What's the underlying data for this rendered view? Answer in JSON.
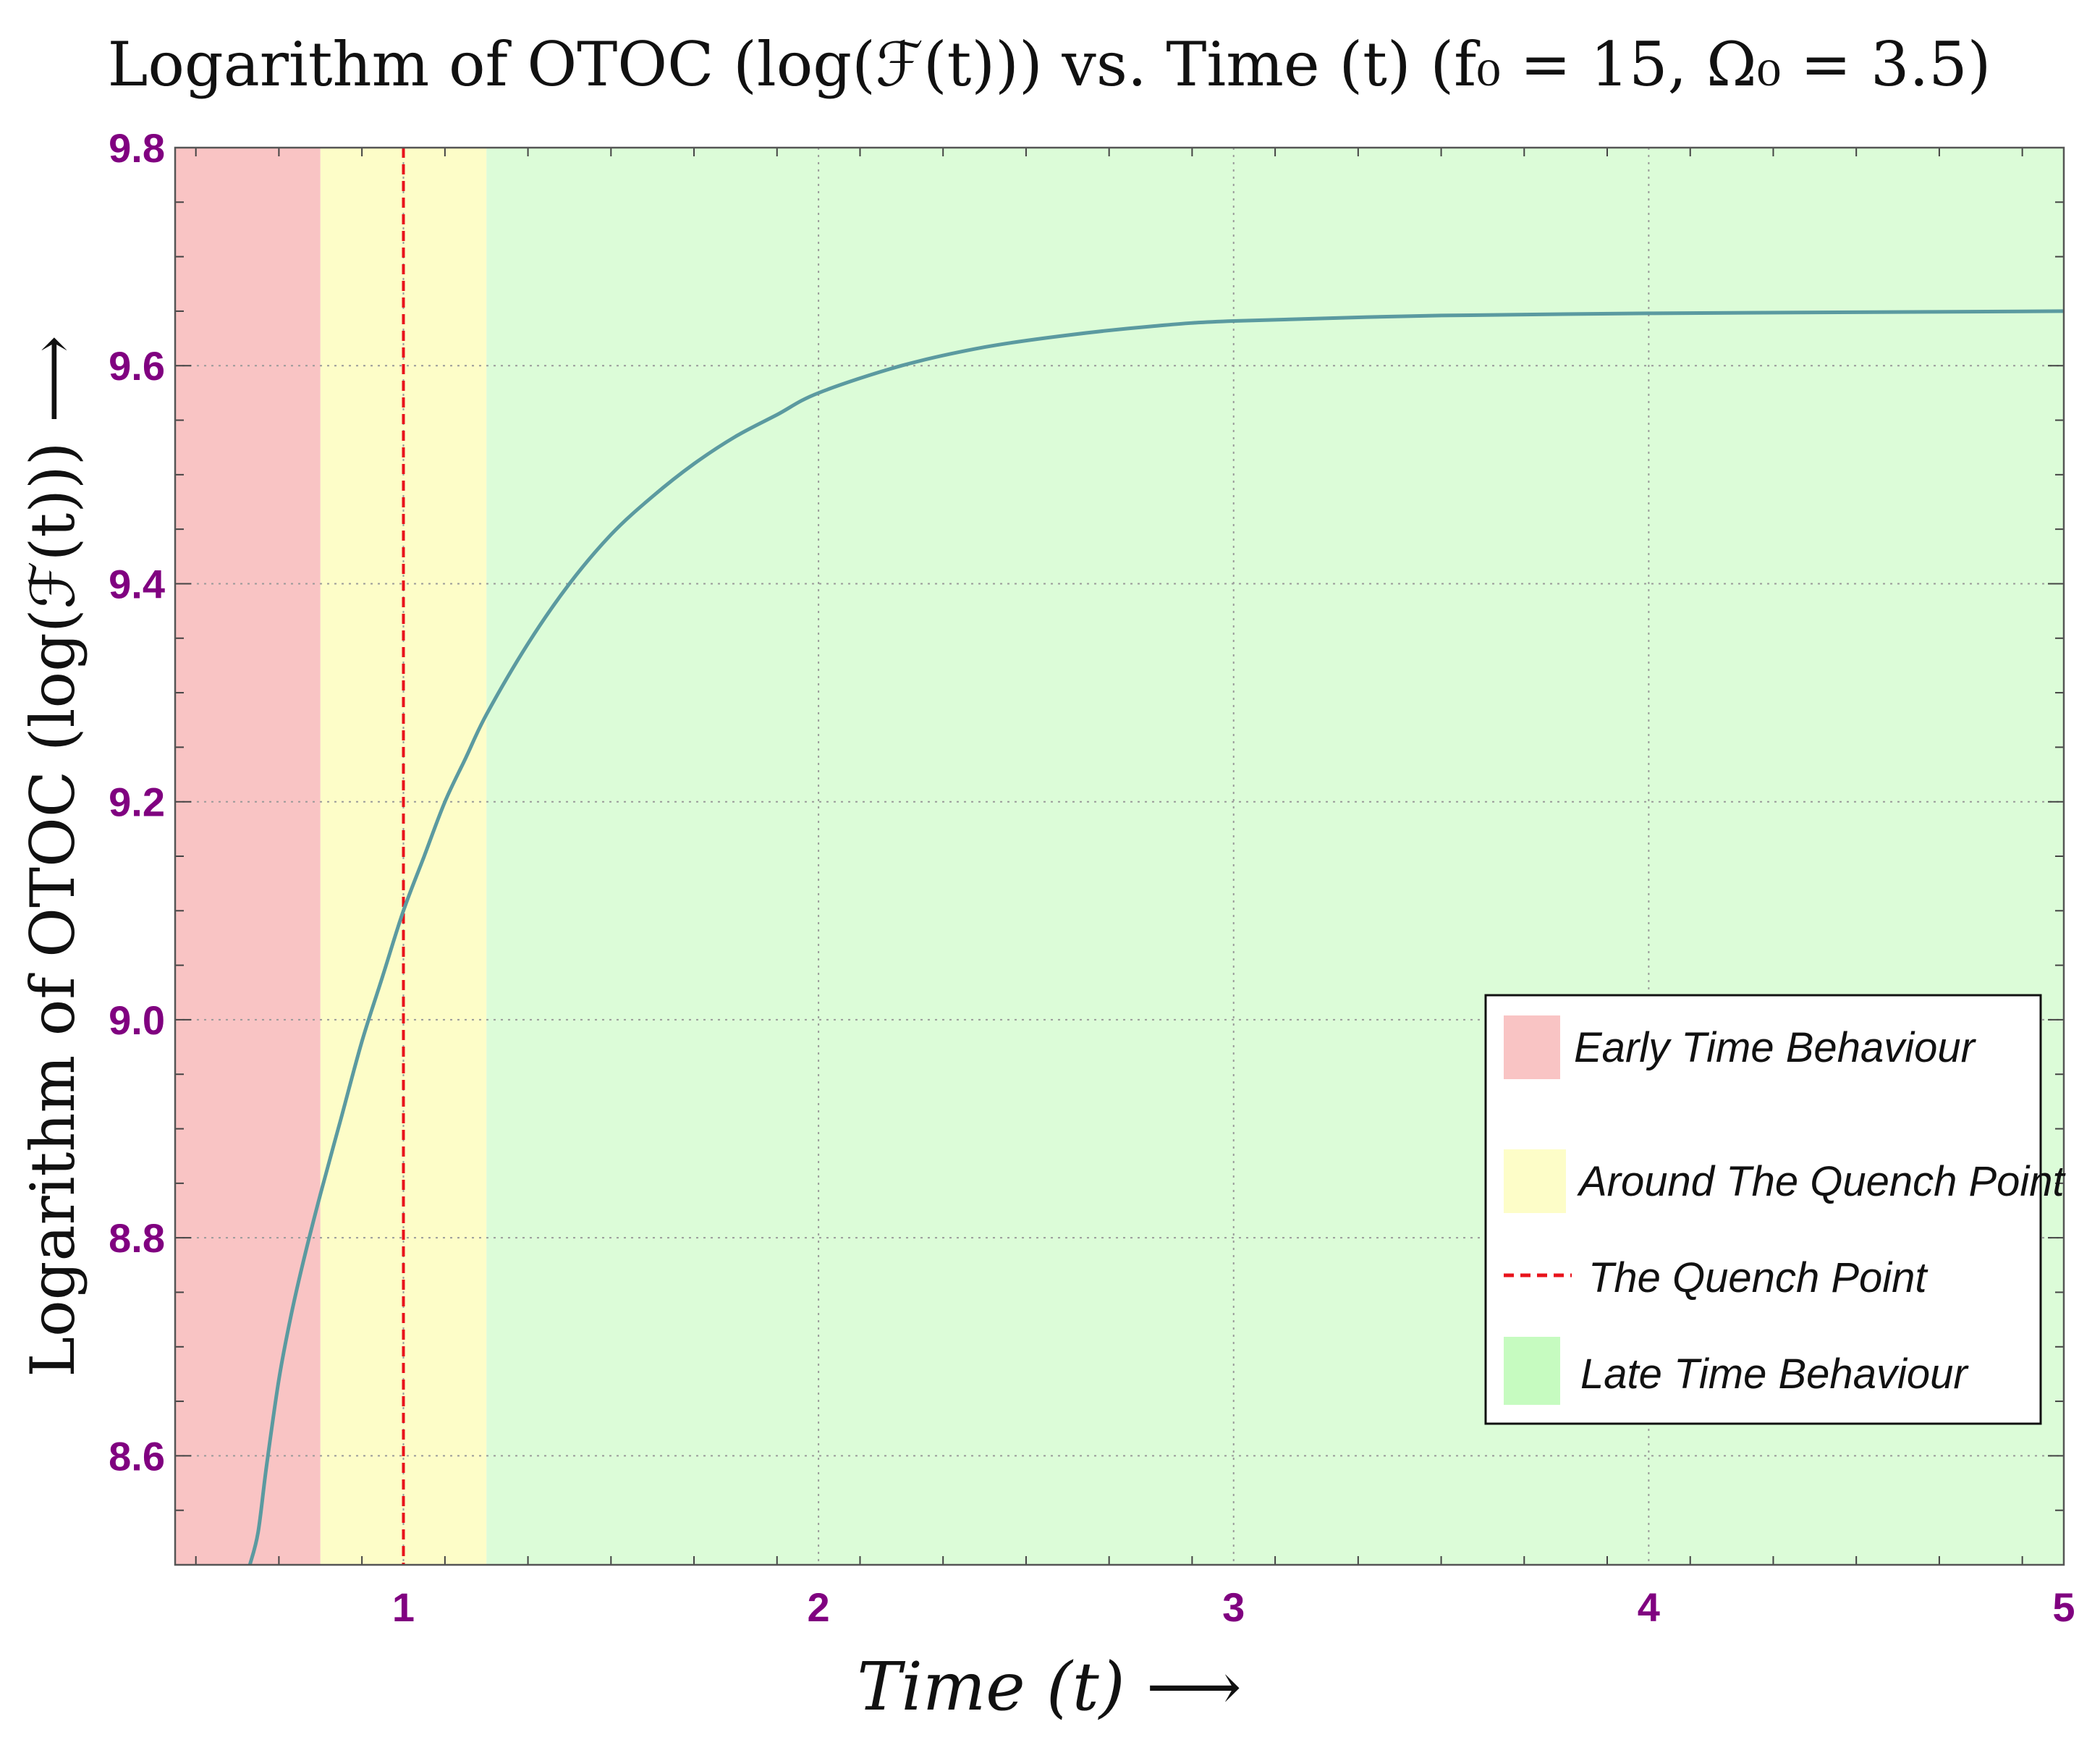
{
  "chart_data": {
    "type": "line",
    "title": "Logarithm of OTOC (log(ℱ(t))) vs. Time (t) (f₀ = 15, Ω₀ = 3.5)",
    "xlabel": "Time (t)  ⟶",
    "ylabel": "Logarithm of OTOC (log(ℱ(t)))  ⟶",
    "xlim": [
      0.45,
      5.0
    ],
    "ylim": [
      8.5,
      9.8
    ],
    "x_ticks": [
      1,
      2,
      3,
      4,
      5
    ],
    "x_tick_labels": [
      "1",
      "2",
      "3",
      "4",
      "5"
    ],
    "y_ticks": [
      8.6,
      8.8,
      9.0,
      9.2,
      9.4,
      9.6,
      9.8
    ],
    "y_tick_labels": [
      "8.6",
      "8.8",
      "9.0",
      "9.2",
      "9.4",
      "9.6",
      "9.8"
    ],
    "grid": true,
    "series": [
      {
        "name": "log(F(t))",
        "color": "#5b9aa0",
        "x": [
          0.63,
          0.65,
          0.67,
          0.7,
          0.73,
          0.76,
          0.8,
          0.85,
          0.9,
          0.95,
          1.0,
          1.05,
          1.1,
          1.15,
          1.2,
          1.3,
          1.4,
          1.5,
          1.6,
          1.7,
          1.8,
          1.9,
          2.0,
          2.2,
          2.4,
          2.6,
          2.8,
          3.0,
          3.5,
          4.0,
          4.5,
          5.0
        ],
        "y": [
          8.5,
          8.53,
          8.59,
          8.67,
          8.73,
          8.78,
          8.84,
          8.91,
          8.98,
          9.04,
          9.1,
          9.15,
          9.2,
          9.24,
          9.28,
          9.345,
          9.4,
          9.445,
          9.48,
          9.51,
          9.535,
          9.555,
          9.575,
          9.6,
          9.617,
          9.628,
          9.636,
          9.641,
          9.646,
          9.648,
          9.649,
          9.65
        ]
      }
    ],
    "regions": [
      {
        "name": "Early Time Behaviour",
        "x_start": 0.45,
        "x_end": 0.8,
        "color": "#f9c4c4"
      },
      {
        "name": "Around The Quench Point",
        "x_start": 0.8,
        "x_end": 1.2,
        "color": "#fdfdc8"
      },
      {
        "name": "Late Time Behaviour",
        "x_start": 1.2,
        "x_end": 5.0,
        "color": "#dcfcd8"
      }
    ],
    "quench_point": {
      "x": 1.0,
      "color": "#e8121b",
      "label": "The Quench Point"
    },
    "legend": {
      "position": "bottom-right",
      "entries": [
        {
          "label": "Early Time Behaviour",
          "kind": "swatch",
          "color": "#f9c4c4"
        },
        {
          "label": "Around The Quench Point",
          "kind": "swatch",
          "color": "#fdfdc8"
        },
        {
          "label": "The Quench Point",
          "kind": "dashed-line",
          "color": "#e8121b"
        },
        {
          "label": "Late Time Behaviour",
          "kind": "swatch",
          "color": "#c6fbc0"
        }
      ]
    }
  }
}
